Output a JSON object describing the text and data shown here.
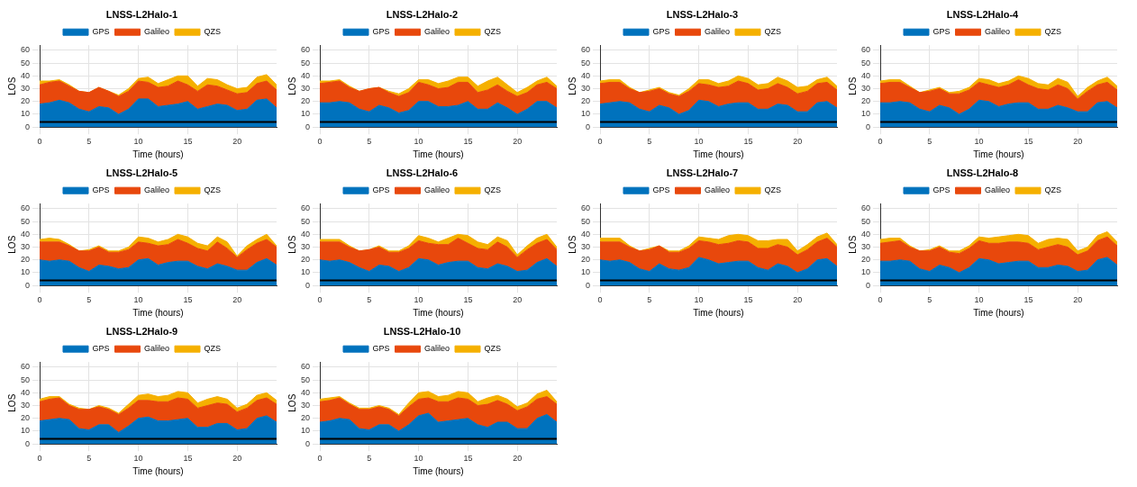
{
  "chart_data": [
    {
      "type": "area",
      "title": "LNSS-L2Halo-1",
      "xlabel": "Time (hours)",
      "ylabel": "LOS",
      "stacked": true,
      "grid": true,
      "legend": "top",
      "xlim": [
        0,
        24
      ],
      "ylim": [
        0,
        64
      ],
      "xticks": [
        0,
        5,
        10,
        15,
        20
      ],
      "yticks": [
        0,
        10,
        20,
        30,
        40,
        50,
        60
      ],
      "ref_lines": [
        {
          "axis": "y",
          "value": 4,
          "color": "#000000"
        }
      ],
      "x": [
        0,
        1,
        2,
        3,
        4,
        5,
        6,
        7,
        8,
        9,
        10,
        11,
        12,
        13,
        14,
        15,
        16,
        17,
        18,
        19,
        20,
        21,
        22,
        23,
        24
      ],
      "series": [
        {
          "name": "GPS",
          "color": "#0072bd",
          "values": [
            18,
            19,
            21,
            19,
            14,
            12,
            16,
            15,
            10,
            14,
            22,
            22,
            16,
            17,
            18,
            20,
            14,
            16,
            18,
            17,
            13,
            14,
            21,
            22,
            15
          ]
        },
        {
          "name": "Galileo",
          "color": "#e8480c",
          "values": [
            15,
            16,
            15,
            13,
            14,
            15,
            15,
            13,
            14,
            14,
            14,
            13,
            15,
            15,
            18,
            13,
            14,
            17,
            14,
            12,
            13,
            13,
            13,
            14,
            14
          ]
        },
        {
          "name": "QZS",
          "color": "#f5b000",
          "values": [
            3,
            1,
            1,
            1,
            0,
            0,
            0,
            0,
            1,
            2,
            2,
            4,
            3,
            5,
            4,
            7,
            4,
            5,
            5,
            4,
            4,
            4,
            5,
            5,
            4
          ]
        }
      ]
    },
    {
      "type": "area",
      "title": "LNSS-L2Halo-2",
      "xlabel": "Time (hours)",
      "ylabel": "LOS",
      "stacked": true,
      "grid": true,
      "legend": "top",
      "xlim": [
        0,
        24
      ],
      "ylim": [
        0,
        64
      ],
      "xticks": [
        0,
        5,
        10,
        15,
        20
      ],
      "yticks": [
        0,
        10,
        20,
        30,
        40,
        50,
        60
      ],
      "ref_lines": [
        {
          "axis": "y",
          "value": 4,
          "color": "#000000"
        }
      ],
      "x": [
        0,
        1,
        2,
        3,
        4,
        5,
        6,
        7,
        8,
        9,
        10,
        11,
        12,
        13,
        14,
        15,
        16,
        17,
        18,
        19,
        20,
        21,
        22,
        23,
        24
      ],
      "series": [
        {
          "name": "GPS",
          "color": "#0072bd",
          "values": [
            19,
            19,
            20,
            19,
            14,
            12,
            17,
            15,
            11,
            13,
            20,
            20,
            16,
            16,
            17,
            20,
            14,
            14,
            19,
            15,
            10,
            14,
            20,
            20,
            15
          ]
        },
        {
          "name": "Galileo",
          "color": "#e8480c",
          "values": [
            15,
            16,
            16,
            12,
            14,
            18,
            14,
            12,
            13,
            14,
            15,
            13,
            14,
            15,
            18,
            15,
            13,
            15,
            14,
            13,
            14,
            13,
            13,
            15,
            15
          ]
        },
        {
          "name": "QZS",
          "color": "#f5b000",
          "values": [
            2,
            1,
            1,
            1,
            0,
            0,
            0,
            1,
            2,
            3,
            2,
            4,
            4,
            5,
            4,
            4,
            5,
            7,
            6,
            5,
            3,
            4,
            3,
            4,
            2
          ]
        }
      ]
    },
    {
      "type": "area",
      "title": "LNSS-L2Halo-3",
      "xlabel": "Time (hours)",
      "ylabel": "LOS",
      "stacked": true,
      "grid": true,
      "legend": "top",
      "xlim": [
        0,
        24
      ],
      "ylim": [
        0,
        64
      ],
      "xticks": [
        0,
        5,
        10,
        15,
        20
      ],
      "yticks": [
        0,
        10,
        20,
        30,
        40,
        50,
        60
      ],
      "ref_lines": [
        {
          "axis": "y",
          "value": 4,
          "color": "#000000"
        }
      ],
      "x": [
        0,
        1,
        2,
        3,
        4,
        5,
        6,
        7,
        8,
        9,
        10,
        11,
        12,
        13,
        14,
        15,
        16,
        17,
        18,
        19,
        20,
        21,
        22,
        23,
        24
      ],
      "series": [
        {
          "name": "GPS",
          "color": "#0072bd",
          "values": [
            18,
            19,
            20,
            19,
            14,
            12,
            17,
            15,
            10,
            13,
            21,
            20,
            16,
            18,
            19,
            19,
            14,
            14,
            18,
            17,
            12,
            12,
            19,
            20,
            15
          ]
        },
        {
          "name": "Galileo",
          "color": "#e8480c",
          "values": [
            16,
            16,
            15,
            11,
            13,
            16,
            13,
            11,
            14,
            15,
            13,
            13,
            15,
            14,
            17,
            15,
            15,
            16,
            16,
            14,
            14,
            16,
            15,
            15,
            14
          ]
        },
        {
          "name": "QZS",
          "color": "#f5b000",
          "values": [
            2,
            2,
            2,
            1,
            0,
            1,
            1,
            1,
            1,
            2,
            3,
            4,
            3,
            4,
            4,
            4,
            4,
            4,
            5,
            5,
            5,
            4,
            3,
            4,
            3
          ]
        }
      ]
    },
    {
      "type": "area",
      "title": "LNSS-L2Halo-4",
      "xlabel": "Time (hours)",
      "ylabel": "LOS",
      "stacked": true,
      "grid": true,
      "legend": "top",
      "xlim": [
        0,
        24
      ],
      "ylim": [
        0,
        64
      ],
      "xticks": [
        0,
        5,
        10,
        15,
        20
      ],
      "yticks": [
        0,
        10,
        20,
        30,
        40,
        50,
        60
      ],
      "ref_lines": [
        {
          "axis": "y",
          "value": 4,
          "color": "#000000"
        }
      ],
      "x": [
        0,
        1,
        2,
        3,
        4,
        5,
        6,
        7,
        8,
        9,
        10,
        11,
        12,
        13,
        14,
        15,
        16,
        17,
        18,
        19,
        20,
        21,
        22,
        23,
        24
      ],
      "series": [
        {
          "name": "GPS",
          "color": "#0072bd",
          "values": [
            19,
            19,
            20,
            19,
            14,
            12,
            17,
            15,
            10,
            14,
            21,
            20,
            16,
            18,
            19,
            19,
            14,
            14,
            17,
            15,
            12,
            12,
            19,
            20,
            15
          ]
        },
        {
          "name": "Galileo",
          "color": "#e8480c",
          "values": [
            15,
            16,
            15,
            12,
            13,
            16,
            13,
            11,
            16,
            15,
            14,
            13,
            15,
            15,
            18,
            14,
            16,
            15,
            16,
            15,
            10,
            16,
            14,
            15,
            14
          ]
        },
        {
          "name": "QZS",
          "color": "#f5b000",
          "values": [
            2,
            2,
            2,
            1,
            0,
            1,
            1,
            1,
            2,
            2,
            3,
            4,
            3,
            3,
            3,
            5,
            4,
            4,
            5,
            5,
            2,
            3,
            3,
            4,
            3
          ]
        }
      ]
    },
    {
      "type": "area",
      "title": "LNSS-L2Halo-5",
      "xlabel": "Time (hours)",
      "ylabel": "LOS",
      "stacked": true,
      "grid": true,
      "legend": "top",
      "xlim": [
        0,
        24
      ],
      "ylim": [
        0,
        64
      ],
      "xticks": [
        0,
        5,
        10,
        15,
        20
      ],
      "yticks": [
        0,
        10,
        20,
        30,
        40,
        50,
        60
      ],
      "ref_lines": [
        {
          "axis": "y",
          "value": 4,
          "color": "#000000"
        }
      ],
      "x": [
        0,
        1,
        2,
        3,
        4,
        5,
        6,
        7,
        8,
        9,
        10,
        11,
        12,
        13,
        14,
        15,
        16,
        17,
        18,
        19,
        20,
        21,
        22,
        23,
        24
      ],
      "series": [
        {
          "name": "GPS",
          "color": "#0072bd",
          "values": [
            20,
            19,
            20,
            19,
            14,
            11,
            16,
            15,
            13,
            14,
            20,
            21,
            16,
            18,
            19,
            19,
            15,
            13,
            17,
            15,
            12,
            12,
            18,
            21,
            16
          ]
        },
        {
          "name": "Galileo",
          "color": "#e8480c",
          "values": [
            14,
            15,
            14,
            12,
            13,
            16,
            14,
            11,
            13,
            14,
            14,
            12,
            15,
            14,
            17,
            14,
            14,
            14,
            17,
            14,
            10,
            16,
            15,
            15,
            14
          ]
        },
        {
          "name": "QZS",
          "color": "#f5b000",
          "values": [
            2,
            3,
            2,
            1,
            0,
            1,
            1,
            1,
            1,
            2,
            4,
            4,
            3,
            4,
            4,
            5,
            4,
            4,
            4,
            5,
            1,
            3,
            3,
            4,
            1
          ]
        }
      ]
    },
    {
      "type": "area",
      "title": "LNSS-L2Halo-6",
      "xlabel": "Time (hours)",
      "ylabel": "LOS",
      "stacked": true,
      "grid": true,
      "legend": "top",
      "xlim": [
        0,
        24
      ],
      "ylim": [
        0,
        64
      ],
      "xticks": [
        0,
        5,
        10,
        15,
        20
      ],
      "yticks": [
        0,
        10,
        20,
        30,
        40,
        50,
        60
      ],
      "ref_lines": [
        {
          "axis": "y",
          "value": 4,
          "color": "#000000"
        }
      ],
      "x": [
        0,
        1,
        2,
        3,
        4,
        5,
        6,
        7,
        8,
        9,
        10,
        11,
        12,
        13,
        14,
        15,
        16,
        17,
        18,
        19,
        20,
        21,
        22,
        23,
        24
      ],
      "series": [
        {
          "name": "GPS",
          "color": "#0072bd",
          "values": [
            20,
            19,
            20,
            18,
            14,
            11,
            16,
            15,
            11,
            14,
            21,
            20,
            16,
            18,
            19,
            19,
            14,
            13,
            17,
            15,
            11,
            12,
            18,
            21,
            15
          ]
        },
        {
          "name": "Galileo",
          "color": "#e8480c",
          "values": [
            14,
            15,
            14,
            12,
            13,
            17,
            14,
            11,
            15,
            15,
            14,
            13,
            16,
            14,
            18,
            14,
            15,
            15,
            17,
            15,
            11,
            16,
            15,
            15,
            13
          ]
        },
        {
          "name": "QZS",
          "color": "#f5b000",
          "values": [
            2,
            2,
            2,
            1,
            0,
            0,
            1,
            1,
            1,
            2,
            4,
            4,
            2,
            5,
            3,
            6,
            5,
            4,
            4,
            5,
            2,
            3,
            4,
            4,
            2
          ]
        }
      ]
    },
    {
      "type": "area",
      "title": "LNSS-L2Halo-7",
      "xlabel": "Time (hours)",
      "ylabel": "LOS",
      "stacked": true,
      "grid": true,
      "legend": "top",
      "xlim": [
        0,
        24
      ],
      "ylim": [
        0,
        64
      ],
      "xticks": [
        0,
        5,
        10,
        15,
        20
      ],
      "yticks": [
        0,
        10,
        20,
        30,
        40,
        50,
        60
      ],
      "ref_lines": [
        {
          "axis": "y",
          "value": 4,
          "color": "#000000"
        }
      ],
      "x": [
        0,
        1,
        2,
        3,
        4,
        5,
        6,
        7,
        8,
        9,
        10,
        11,
        12,
        13,
        14,
        15,
        16,
        17,
        18,
        19,
        20,
        21,
        22,
        23,
        24
      ],
      "series": [
        {
          "name": "GPS",
          "color": "#0072bd",
          "values": [
            20,
            19,
            20,
            18,
            13,
            11,
            17,
            13,
            12,
            14,
            22,
            20,
            17,
            18,
            19,
            19,
            14,
            12,
            17,
            15,
            10,
            13,
            20,
            21,
            15
          ]
        },
        {
          "name": "Galileo",
          "color": "#e8480c",
          "values": [
            14,
            15,
            14,
            12,
            14,
            17,
            14,
            13,
            14,
            15,
            13,
            14,
            15,
            15,
            16,
            15,
            15,
            17,
            15,
            15,
            14,
            15,
            14,
            16,
            15
          ]
        },
        {
          "name": "QZS",
          "color": "#f5b000",
          "values": [
            3,
            3,
            3,
            1,
            0,
            1,
            0,
            1,
            1,
            2,
            3,
            3,
            4,
            6,
            5,
            5,
            6,
            6,
            4,
            6,
            3,
            4,
            4,
            4,
            2
          ]
        }
      ]
    },
    {
      "type": "area",
      "title": "LNSS-L2Halo-8",
      "xlabel": "Time (hours)",
      "ylabel": "LOS",
      "stacked": true,
      "grid": true,
      "legend": "top",
      "xlim": [
        0,
        24
      ],
      "ylim": [
        0,
        64
      ],
      "xticks": [
        0,
        5,
        10,
        15,
        20
      ],
      "yticks": [
        0,
        10,
        20,
        30,
        40,
        50,
        60
      ],
      "ref_lines": [
        {
          "axis": "y",
          "value": 4,
          "color": "#000000"
        }
      ],
      "x": [
        0,
        1,
        2,
        3,
        4,
        5,
        6,
        7,
        8,
        9,
        10,
        11,
        12,
        13,
        14,
        15,
        16,
        17,
        18,
        19,
        20,
        21,
        22,
        23,
        24
      ],
      "series": [
        {
          "name": "GPS",
          "color": "#0072bd",
          "values": [
            19,
            19,
            20,
            19,
            13,
            11,
            16,
            14,
            10,
            14,
            21,
            20,
            17,
            18,
            19,
            19,
            14,
            14,
            16,
            15,
            11,
            12,
            20,
            22,
            16
          ]
        },
        {
          "name": "Galileo",
          "color": "#e8480c",
          "values": [
            14,
            15,
            15,
            11,
            14,
            16,
            14,
            12,
            15,
            15,
            14,
            13,
            16,
            16,
            15,
            14,
            14,
            16,
            16,
            15,
            13,
            15,
            15,
            16,
            15
          ]
        },
        {
          "name": "QZS",
          "color": "#f5b000",
          "values": [
            3,
            3,
            2,
            1,
            0,
            1,
            1,
            1,
            2,
            2,
            3,
            4,
            5,
            5,
            6,
            6,
            5,
            6,
            5,
            6,
            3,
            3,
            4,
            4,
            3
          ]
        }
      ]
    },
    {
      "type": "area",
      "title": "LNSS-L2Halo-9",
      "xlabel": "Time (hours)",
      "ylabel": "LOS",
      "stacked": true,
      "grid": true,
      "legend": "top",
      "xlim": [
        0,
        24
      ],
      "ylim": [
        0,
        64
      ],
      "xticks": [
        0,
        5,
        10,
        15,
        20
      ],
      "yticks": [
        0,
        10,
        20,
        30,
        40,
        50,
        60
      ],
      "ref_lines": [
        {
          "axis": "y",
          "value": 4,
          "color": "#000000"
        }
      ],
      "x": [
        0,
        1,
        2,
        3,
        4,
        5,
        6,
        7,
        8,
        9,
        10,
        11,
        12,
        13,
        14,
        15,
        16,
        17,
        18,
        19,
        20,
        21,
        22,
        23,
        24
      ],
      "series": [
        {
          "name": "GPS",
          "color": "#0072bd",
          "values": [
            18,
            19,
            20,
            19,
            12,
            11,
            15,
            15,
            9,
            14,
            20,
            21,
            18,
            18,
            19,
            20,
            13,
            13,
            16,
            16,
            11,
            12,
            20,
            22,
            17
          ]
        },
        {
          "name": "Galileo",
          "color": "#e8480c",
          "values": [
            15,
            16,
            16,
            11,
            15,
            16,
            14,
            12,
            14,
            14,
            14,
            13,
            15,
            15,
            17,
            15,
            15,
            17,
            16,
            15,
            14,
            16,
            14,
            14,
            14
          ]
        },
        {
          "name": "QZS",
          "color": "#f5b000",
          "values": [
            2,
            2,
            1,
            1,
            1,
            0,
            1,
            1,
            1,
            3,
            4,
            5,
            4,
            5,
            5,
            5,
            4,
            5,
            5,
            4,
            3,
            3,
            4,
            4,
            3
          ]
        }
      ]
    },
    {
      "type": "area",
      "title": "LNSS-L2Halo-10",
      "xlabel": "Time (hours)",
      "ylabel": "LOS",
      "stacked": true,
      "grid": true,
      "legend": "top",
      "xlim": [
        0,
        24
      ],
      "ylim": [
        0,
        64
      ],
      "xticks": [
        0,
        5,
        10,
        15,
        20
      ],
      "yticks": [
        0,
        10,
        20,
        30,
        40,
        50,
        60
      ],
      "ref_lines": [
        {
          "axis": "y",
          "value": 4,
          "color": "#000000"
        }
      ],
      "x": [
        0,
        1,
        2,
        3,
        4,
        5,
        6,
        7,
        8,
        9,
        10,
        11,
        12,
        13,
        14,
        15,
        16,
        17,
        18,
        19,
        20,
        21,
        22,
        23,
        24
      ],
      "series": [
        {
          "name": "GPS",
          "color": "#0072bd",
          "values": [
            17,
            18,
            20,
            19,
            12,
            11,
            15,
            15,
            10,
            15,
            22,
            24,
            17,
            18,
            19,
            20,
            15,
            13,
            17,
            17,
            12,
            12,
            20,
            23,
            17
          ]
        },
        {
          "name": "Galileo",
          "color": "#e8480c",
          "values": [
            16,
            16,
            16,
            12,
            15,
            16,
            14,
            12,
            12,
            14,
            13,
            12,
            16,
            15,
            17,
            15,
            15,
            18,
            17,
            14,
            14,
            17,
            15,
            14,
            14
          ]
        },
        {
          "name": "QZS",
          "color": "#f5b000",
          "values": [
            2,
            2,
            1,
            1,
            1,
            1,
            1,
            1,
            1,
            3,
            5,
            5,
            4,
            5,
            5,
            5,
            3,
            5,
            4,
            4,
            3,
            3,
            4,
            5,
            2
          ]
        }
      ]
    }
  ]
}
